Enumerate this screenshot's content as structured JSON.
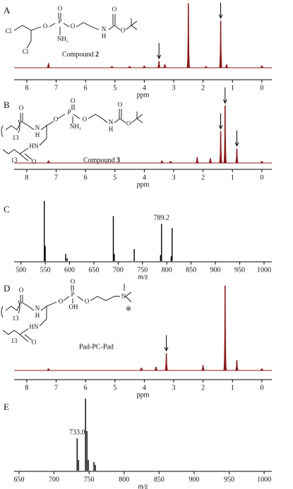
{
  "chart_data": [
    {
      "type": "nmr",
      "panel": "A",
      "xlim": [
        8.43,
        -0.34
      ],
      "xticks": [
        8,
        7,
        6,
        5,
        4,
        3,
        2,
        1,
        0
      ],
      "xlabel": "ppm",
      "x": [
        7.26,
        5.1,
        4.5,
        4.0,
        3.5,
        3.3,
        2.5,
        1.9,
        1.4,
        1.2,
        0
      ],
      "values": [
        7,
        2,
        2,
        3,
        10,
        5,
        100,
        2,
        73,
        5,
        3
      ],
      "color": "#8b1a1a",
      "arrows": [
        3.5,
        1.4
      ],
      "structure_labels": [
        "Cl",
        "O",
        "P",
        "O",
        "O",
        "NH₂",
        "N",
        "H",
        "O",
        "O",
        "Cl"
      ],
      "compound": "Compound",
      "compound_number": "2"
    },
    {
      "type": "nmr",
      "panel": "B",
      "xlim": [
        8.43,
        -0.34
      ],
      "xticks": [
        8,
        7,
        6,
        5,
        4,
        3,
        2,
        1,
        0
      ],
      "xlabel": "ppm",
      "x": [
        7.26,
        3.4,
        3.1,
        2.2,
        1.75,
        1.4,
        1.25,
        0.85,
        0
      ],
      "values": [
        4,
        4,
        3,
        10,
        8,
        55,
        100,
        25,
        3
      ],
      "color": "#8b1a1a",
      "arrows": [
        1.4,
        1.25,
        0.85
      ],
      "structure_labels": [
        "O",
        "13",
        "N",
        "H",
        "O",
        "P",
        "O",
        "NH₂",
        "O",
        "N",
        "H",
        "O",
        "O",
        "HN",
        "O",
        "13"
      ],
      "compound": "Compound",
      "compound_number": "3"
    },
    {
      "type": "mass",
      "panel": "C",
      "xlim": [
        486,
        1016
      ],
      "xticks": [
        500,
        550,
        600,
        650,
        700,
        750,
        800,
        850,
        900,
        950,
        1000
      ],
      "xlabel": "m/z",
      "x": [
        548,
        550,
        592,
        595,
        690,
        692,
        733,
        787,
        789.2,
        809,
        811
      ],
      "values": [
        100,
        25,
        12,
        5,
        75,
        12,
        20,
        10,
        62,
        8,
        55
      ],
      "color": "#000000",
      "peak_labels": [
        {
          "value": 789.2,
          "label": "789.2"
        }
      ]
    },
    {
      "type": "nmr",
      "panel": "D",
      "xlim": [
        8.43,
        -0.34
      ],
      "xticks": [
        8,
        7,
        6,
        5,
        4,
        3,
        2,
        1,
        0
      ],
      "xlabel": "ppm",
      "x": [
        7.26,
        4.1,
        3.6,
        3.25,
        2.0,
        1.25,
        0.85,
        0
      ],
      "values": [
        2,
        3,
        4,
        20,
        6,
        100,
        12,
        2
      ],
      "color": "#8b1a1a",
      "arrows": [
        3.25
      ],
      "structure_labels": [
        "O",
        "13",
        "N",
        "H",
        "O",
        "P",
        "O",
        "OH",
        "O",
        "N",
        "⊕",
        "HN",
        "O",
        "13"
      ],
      "compound": "Pad-PC-Pad"
    },
    {
      "type": "mass",
      "panel": "E",
      "xlim": [
        643,
        1011
      ],
      "xticks": [
        650,
        700,
        750,
        800,
        850,
        900,
        950,
        1000
      ],
      "xlabel": "m/z",
      "x": [
        733,
        735,
        745,
        747,
        749,
        757,
        759
      ],
      "values": [
        45,
        15,
        100,
        55,
        15,
        12,
        8
      ],
      "color": "#000000",
      "peak_labels": [
        {
          "value": 733.0,
          "label": "733.0"
        }
      ]
    }
  ]
}
